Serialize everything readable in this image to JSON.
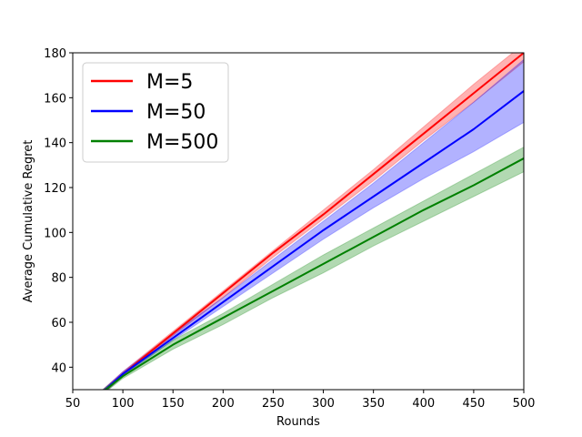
{
  "chart_data": {
    "type": "line",
    "title": "",
    "xlabel": "Rounds",
    "ylabel": "Average Cumulative Regret",
    "xlim": [
      50,
      500
    ],
    "ylim": [
      30,
      180
    ],
    "x_ticks": [
      "50",
      "100",
      "150",
      "200",
      "250",
      "300",
      "350",
      "400",
      "450",
      "500"
    ],
    "y_ticks": [
      "40",
      "60",
      "80",
      "100",
      "120",
      "140",
      "160",
      "180"
    ],
    "grid": false,
    "legend_position": "top-left",
    "x": [
      80,
      100,
      150,
      200,
      250,
      300,
      350,
      400,
      450,
      500
    ],
    "series": [
      {
        "name": "M=5",
        "color": "#ff0000",
        "values": [
          29,
          37,
          55,
          73,
          91,
          108,
          126,
          144,
          162,
          180
        ],
        "lower": [
          28,
          36,
          54,
          71,
          89,
          106,
          123,
          141,
          158,
          176
        ],
        "upper": [
          30,
          38,
          56,
          74,
          92,
          110,
          128,
          147,
          166,
          184
        ]
      },
      {
        "name": "M=50",
        "color": "#0000ff",
        "values": [
          29,
          37,
          53,
          69,
          85,
          101,
          116,
          131,
          146,
          163
        ],
        "lower": [
          28,
          36,
          52,
          67,
          82,
          97,
          111,
          124,
          136,
          149
        ],
        "upper": [
          30,
          38,
          55,
          71,
          88,
          105,
          122,
          140,
          158,
          177
        ]
      },
      {
        "name": "M=500",
        "color": "#008000",
        "values": [
          29,
          36,
          50,
          62,
          74,
          86,
          98,
          110,
          121,
          133
        ],
        "lower": [
          28,
          35,
          48,
          59,
          71,
          82,
          94,
          105,
          116,
          127
        ],
        "upper": [
          30,
          37,
          52,
          64,
          77,
          90,
          102,
          114,
          126,
          138
        ]
      }
    ]
  }
}
